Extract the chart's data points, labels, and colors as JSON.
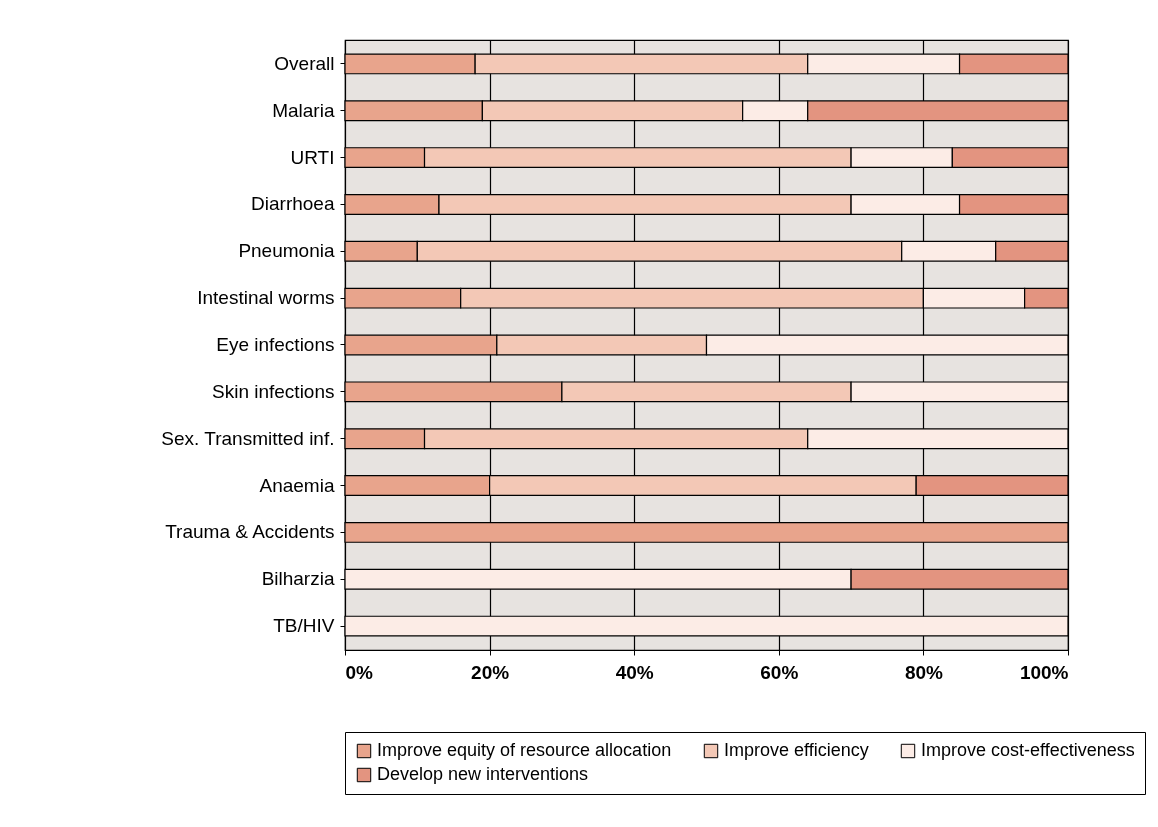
{
  "chart_data": {
    "type": "bar",
    "orientation": "horizontal",
    "stacked": true,
    "categories": [
      "Overall",
      "Malaria",
      "URTI",
      "Diarrhoea",
      "Pneumonia",
      "Intestinal worms",
      "Eye infections",
      "Skin infections",
      "Sex. Transmitted inf.",
      "Anaemia",
      "Trauma & Accidents",
      "Bilharzia",
      "TB/HIV"
    ],
    "series": [
      {
        "name": "Improve equity of resource allocation",
        "color": "#e8a48c",
        "values": [
          18,
          19,
          11,
          13,
          10,
          16,
          21,
          30,
          11,
          20,
          100,
          null,
          null
        ]
      },
      {
        "name": "Improve efficiency",
        "color": "#f3c8b6",
        "values": [
          46,
          36,
          59,
          57,
          67,
          64,
          29,
          40,
          53,
          59,
          null,
          null,
          null
        ]
      },
      {
        "name": "Improve cost-effectiveness",
        "color": "#fcece6",
        "values": [
          21,
          9,
          14,
          15,
          13,
          14,
          50,
          30,
          36,
          null,
          null,
          70,
          100
        ]
      },
      {
        "name": "Develop new interventions",
        "color": "#e39480",
        "values": [
          15,
          36,
          16,
          15,
          10,
          6,
          null,
          null,
          null,
          21,
          null,
          30,
          null
        ]
      }
    ],
    "xlim": [
      0,
      100
    ],
    "xticks": [
      {
        "value": 0,
        "label": "0%"
      },
      {
        "value": 20,
        "label": "20%"
      },
      {
        "value": 40,
        "label": "40%"
      },
      {
        "value": 60,
        "label": "60%"
      },
      {
        "value": 80,
        "label": "80%"
      },
      {
        "value": 100,
        "label": "100%"
      }
    ],
    "grid": "x",
    "legend": "bottom"
  }
}
